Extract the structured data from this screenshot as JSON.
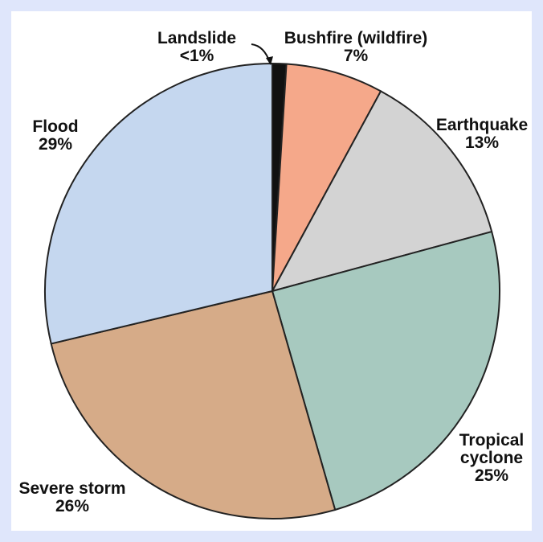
{
  "chart_data": {
    "type": "pie",
    "slices": [
      {
        "name": "Landslide",
        "value": 1,
        "label": "<1%",
        "color": "#111111"
      },
      {
        "name": "Bushfire (wildfire)",
        "value": 7,
        "label": "7%",
        "color": "#f5a88a"
      },
      {
        "name": "Earthquake",
        "value": 13,
        "label": "13%",
        "color": "#d3d3d3"
      },
      {
        "name": "Tropical cyclone",
        "value": 25,
        "label": "25%",
        "color": "#a7c9bf"
      },
      {
        "name": "Severe storm",
        "value": 26,
        "label": "26%",
        "color": "#d6ab88"
      },
      {
        "name": "Flood",
        "value": 29,
        "label": "29%",
        "color": "#c5d7ef"
      }
    ],
    "label_lines": {
      "Tropical cyclone": [
        "Tropical",
        "cyclone"
      ],
      "Severe storm": [
        "Severe storm"
      ],
      "Bushfire (wildfire)": [
        "Bushfire (wildfire)"
      ],
      "Landslide": [
        "Landslide"
      ],
      "Earthquake": [
        "Earthquake"
      ],
      "Flood": [
        "Flood"
      ]
    },
    "title": "",
    "legend": "none"
  }
}
